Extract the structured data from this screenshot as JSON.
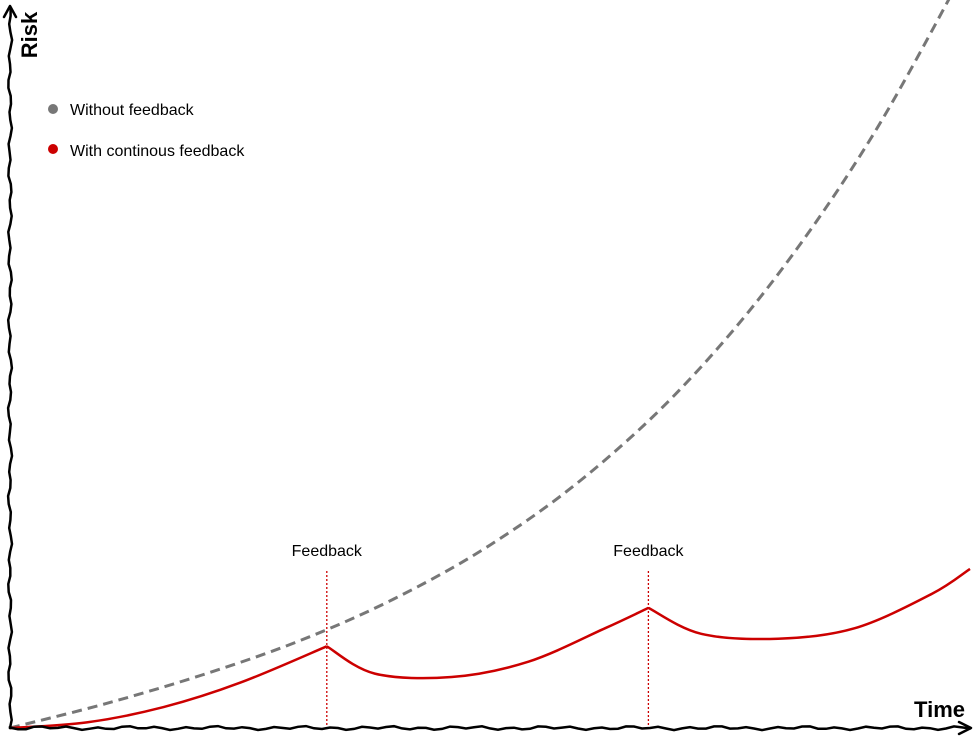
{
  "chart_data": {
    "type": "line",
    "xlabel": "Time",
    "ylabel": "Risk",
    "xlim": [
      0,
      100
    ],
    "ylim": [
      0,
      100
    ],
    "grid": false,
    "legend_placement": "top-left",
    "series": [
      {
        "name": "Without feedback",
        "color": "#777777",
        "style": "dashed",
        "x": [
          0,
          10,
          20,
          30,
          40,
          50,
          60,
          70,
          80,
          90,
          100
        ],
        "y": [
          0,
          3.5,
          7.6,
          12.4,
          18.5,
          26.2,
          36.1,
          48.8,
          65.0,
          85.2,
          110
        ]
      },
      {
        "name": "With continous feedback",
        "color": "#cc0000",
        "style": "solid",
        "x": [
          0,
          8,
          16,
          24,
          33,
          38,
          46,
          54,
          62,
          66.5,
          72,
          80,
          88,
          96,
          100
        ],
        "y": [
          0,
          0.8,
          3.0,
          6.5,
          11.7,
          7.8,
          7.3,
          9.5,
          14.3,
          17.2,
          13.5,
          12.8,
          14.3,
          19.2,
          22.8
        ]
      }
    ],
    "annotations": [
      {
        "label": "Feedback",
        "x": 33,
        "color": "#cc0000"
      },
      {
        "label": "Feedback",
        "x": 66.5,
        "color": "#cc0000"
      }
    ]
  }
}
